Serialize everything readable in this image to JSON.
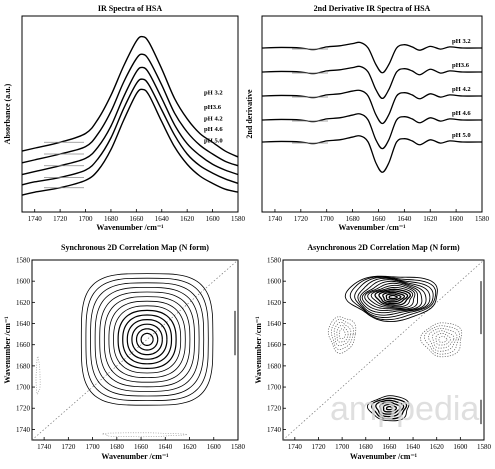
{
  "watermark": "amppedia",
  "chart_data": [
    {
      "type": "line",
      "title": "IR Spectra of HSA",
      "xlabel": "Wavenumber /cm⁻¹",
      "ylabel": "Absorbance (a.u.)",
      "xlim": [
        1750,
        1580
      ],
      "x_ticks": [
        1740,
        1720,
        1700,
        1680,
        1660,
        1640,
        1620,
        1600,
        1580
      ],
      "y_ticks_shown": false,
      "grid": false,
      "legend": "direct labels at right",
      "series": [
        {
          "name": "pH 3.2",
          "points": [
            [
              1750,
              0.3
            ],
            [
              1740,
              0.32
            ],
            [
              1720,
              0.36
            ],
            [
              1700,
              0.42
            ],
            [
              1690,
              0.52
            ],
            [
              1680,
              0.68
            ],
            [
              1670,
              0.88
            ],
            [
              1660,
              1.05
            ],
            [
              1655,
              1.08
            ],
            [
              1650,
              1.04
            ],
            [
              1640,
              0.86
            ],
            [
              1630,
              0.66
            ],
            [
              1620,
              0.52
            ],
            [
              1610,
              0.42
            ],
            [
              1600,
              0.36
            ],
            [
              1590,
              0.3
            ],
            [
              1580,
              0.26
            ]
          ]
        },
        {
          "name": "pH3.6",
          "points": [
            [
              1750,
              0.22
            ],
            [
              1740,
              0.24
            ],
            [
              1720,
              0.28
            ],
            [
              1700,
              0.33
            ],
            [
              1690,
              0.42
            ],
            [
              1680,
              0.57
            ],
            [
              1670,
              0.77
            ],
            [
              1660,
              0.93
            ],
            [
              1655,
              0.96
            ],
            [
              1650,
              0.92
            ],
            [
              1640,
              0.75
            ],
            [
              1630,
              0.56
            ],
            [
              1620,
              0.43
            ],
            [
              1610,
              0.34
            ],
            [
              1600,
              0.28
            ],
            [
              1590,
              0.23
            ],
            [
              1580,
              0.2
            ]
          ]
        },
        {
          "name": "pH 4.2",
          "points": [
            [
              1750,
              0.14
            ],
            [
              1740,
              0.16
            ],
            [
              1720,
              0.2
            ],
            [
              1700,
              0.25
            ],
            [
              1690,
              0.33
            ],
            [
              1680,
              0.47
            ],
            [
              1670,
              0.67
            ],
            [
              1660,
              0.84
            ],
            [
              1655,
              0.87
            ],
            [
              1650,
              0.83
            ],
            [
              1640,
              0.66
            ],
            [
              1630,
              0.48
            ],
            [
              1620,
              0.35
            ],
            [
              1610,
              0.27
            ],
            [
              1600,
              0.21
            ],
            [
              1590,
              0.17
            ],
            [
              1580,
              0.14
            ]
          ]
        },
        {
          "name": "pH 4.6",
          "points": [
            [
              1750,
              0.07
            ],
            [
              1740,
              0.09
            ],
            [
              1720,
              0.12
            ],
            [
              1700,
              0.17
            ],
            [
              1690,
              0.25
            ],
            [
              1680,
              0.39
            ],
            [
              1670,
              0.59
            ],
            [
              1660,
              0.76
            ],
            [
              1655,
              0.79
            ],
            [
              1650,
              0.75
            ],
            [
              1640,
              0.58
            ],
            [
              1630,
              0.41
            ],
            [
              1620,
              0.28
            ],
            [
              1610,
              0.2
            ],
            [
              1600,
              0.15
            ],
            [
              1590,
              0.11
            ],
            [
              1580,
              0.08
            ]
          ]
        },
        {
          "name": "pH 5.0",
          "points": [
            [
              1750,
              0.0
            ],
            [
              1740,
              0.02
            ],
            [
              1720,
              0.05
            ],
            [
              1700,
              0.1
            ],
            [
              1690,
              0.17
            ],
            [
              1680,
              0.31
            ],
            [
              1670,
              0.51
            ],
            [
              1660,
              0.69
            ],
            [
              1655,
              0.72
            ],
            [
              1650,
              0.68
            ],
            [
              1640,
              0.5
            ],
            [
              1630,
              0.33
            ],
            [
              1620,
              0.21
            ],
            [
              1610,
              0.13
            ],
            [
              1600,
              0.08
            ],
            [
              1590,
              0.04
            ],
            [
              1580,
              0.02
            ]
          ]
        }
      ]
    },
    {
      "type": "line",
      "title": "2nd Derivative IR Spectra of HSA",
      "xlabel": "Wavenumber /cm⁻¹",
      "ylabel": "2nd derivative",
      "xlim": [
        1750,
        1580
      ],
      "x_ticks": [
        1740,
        1720,
        1700,
        1680,
        1660,
        1640,
        1620,
        1600,
        1580
      ],
      "y_ticks_shown": false,
      "grid": false,
      "legend": "direct labels at right",
      "series": [
        {
          "name": "pH 3.2",
          "points": [
            [
              1750,
              0.0
            ],
            [
              1735,
              0.01
            ],
            [
              1720,
              0.0
            ],
            [
              1710,
              -0.03
            ],
            [
              1700,
              0.02
            ],
            [
              1690,
              0.04
            ],
            [
              1680,
              0.08
            ],
            [
              1674,
              0.1
            ],
            [
              1668,
              0.0
            ],
            [
              1662,
              -0.3
            ],
            [
              1657,
              -0.45
            ],
            [
              1652,
              -0.3
            ],
            [
              1646,
              0.0
            ],
            [
              1640,
              0.06
            ],
            [
              1634,
              0.02
            ],
            [
              1628,
              -0.04
            ],
            [
              1620,
              0.03
            ],
            [
              1612,
              -0.02
            ],
            [
              1605,
              0.02
            ],
            [
              1595,
              0.0
            ],
            [
              1580,
              0.0
            ]
          ]
        },
        {
          "name": "pH3.6",
          "points": [
            [
              1750,
              0.0
            ],
            [
              1735,
              0.01
            ],
            [
              1720,
              0.0
            ],
            [
              1710,
              -0.03
            ],
            [
              1700,
              0.02
            ],
            [
              1690,
              0.04
            ],
            [
              1680,
              0.08
            ],
            [
              1674,
              0.1
            ],
            [
              1668,
              0.0
            ],
            [
              1662,
              -0.32
            ],
            [
              1657,
              -0.48
            ],
            [
              1652,
              -0.32
            ],
            [
              1646,
              0.0
            ],
            [
              1640,
              0.06
            ],
            [
              1634,
              0.02
            ],
            [
              1628,
              -0.05
            ],
            [
              1620,
              0.05
            ],
            [
              1612,
              -0.02
            ],
            [
              1605,
              0.02
            ],
            [
              1595,
              0.0
            ],
            [
              1580,
              0.0
            ]
          ]
        },
        {
          "name": "pH 4.2",
          "points": [
            [
              1750,
              0.0
            ],
            [
              1735,
              0.01
            ],
            [
              1720,
              0.0
            ],
            [
              1710,
              -0.03
            ],
            [
              1700,
              0.02
            ],
            [
              1690,
              0.04
            ],
            [
              1680,
              0.09
            ],
            [
              1674,
              0.1
            ],
            [
              1668,
              0.0
            ],
            [
              1662,
              -0.34
            ],
            [
              1657,
              -0.5
            ],
            [
              1652,
              -0.34
            ],
            [
              1646,
              0.0
            ],
            [
              1640,
              0.06
            ],
            [
              1634,
              0.02
            ],
            [
              1628,
              -0.05
            ],
            [
              1620,
              0.04
            ],
            [
              1612,
              -0.02
            ],
            [
              1605,
              0.02
            ],
            [
              1595,
              0.0
            ],
            [
              1580,
              0.0
            ]
          ]
        },
        {
          "name": "pH 4.6",
          "points": [
            [
              1750,
              0.0
            ],
            [
              1735,
              0.01
            ],
            [
              1720,
              0.0
            ],
            [
              1710,
              -0.03
            ],
            [
              1700,
              0.02
            ],
            [
              1690,
              0.04
            ],
            [
              1680,
              0.09
            ],
            [
              1674,
              0.11
            ],
            [
              1668,
              0.0
            ],
            [
              1662,
              -0.36
            ],
            [
              1657,
              -0.52
            ],
            [
              1652,
              -0.36
            ],
            [
              1646,
              0.0
            ],
            [
              1640,
              0.06
            ],
            [
              1634,
              0.02
            ],
            [
              1628,
              -0.05
            ],
            [
              1620,
              0.04
            ],
            [
              1612,
              -0.02
            ],
            [
              1605,
              0.02
            ],
            [
              1595,
              0.0
            ],
            [
              1580,
              0.0
            ]
          ]
        },
        {
          "name": "pH 5.0",
          "points": [
            [
              1750,
              0.0
            ],
            [
              1735,
              0.01
            ],
            [
              1720,
              0.0
            ],
            [
              1710,
              -0.03
            ],
            [
              1700,
              0.02
            ],
            [
              1690,
              0.04
            ],
            [
              1680,
              0.09
            ],
            [
              1674,
              0.11
            ],
            [
              1668,
              0.0
            ],
            [
              1662,
              -0.38
            ],
            [
              1657,
              -0.55
            ],
            [
              1652,
              -0.38
            ],
            [
              1646,
              0.0
            ],
            [
              1640,
              0.06
            ],
            [
              1634,
              0.02
            ],
            [
              1628,
              -0.05
            ],
            [
              1620,
              0.04
            ],
            [
              1612,
              -0.02
            ],
            [
              1605,
              0.02
            ],
            [
              1595,
              0.0
            ],
            [
              1580,
              0.0
            ]
          ]
        }
      ]
    },
    {
      "type": "heatmap",
      "subtype": "contour",
      "title": "Synchronous 2D Correlation Map (N form)",
      "xlabel": "Wavenumber /cm⁻¹",
      "ylabel": "Wavenumber /cm⁻¹",
      "xlim": [
        1750,
        1580
      ],
      "ylim": [
        1580,
        1750
      ],
      "x_ticks": [
        1740,
        1720,
        1700,
        1680,
        1660,
        1640,
        1620,
        1600,
        1580
      ],
      "y_ticks": [
        1580,
        1600,
        1620,
        1640,
        1660,
        1680,
        1700,
        1720,
        1740
      ],
      "diagonal": true,
      "autopeak": {
        "x": 1655,
        "y": 1655,
        "levels": 14,
        "sign": "positive"
      }
    },
    {
      "type": "heatmap",
      "subtype": "contour",
      "title": "Asynchronous 2D Correlation Map (N form)",
      "xlabel": "Wavenumber /cm⁻¹",
      "ylabel": "Wavenumber /cm⁻¹",
      "xlim": [
        1750,
        1580
      ],
      "ylim": [
        1580,
        1750
      ],
      "x_ticks": [
        1740,
        1720,
        1700,
        1680,
        1660,
        1640,
        1620,
        1600,
        1580
      ],
      "y_ticks": [
        1580,
        1600,
        1620,
        1640,
        1660,
        1680,
        1700,
        1720,
        1740
      ],
      "diagonal": true,
      "cross_peaks": [
        {
          "x": 1657,
          "y": 1615,
          "sign": "positive"
        },
        {
          "x": 1660,
          "y": 1720,
          "sign": "positive"
        },
        {
          "x": 1700,
          "y": 1650,
          "sign": "negative"
        },
        {
          "x": 1615,
          "y": 1655,
          "sign": "negative"
        }
      ]
    }
  ]
}
